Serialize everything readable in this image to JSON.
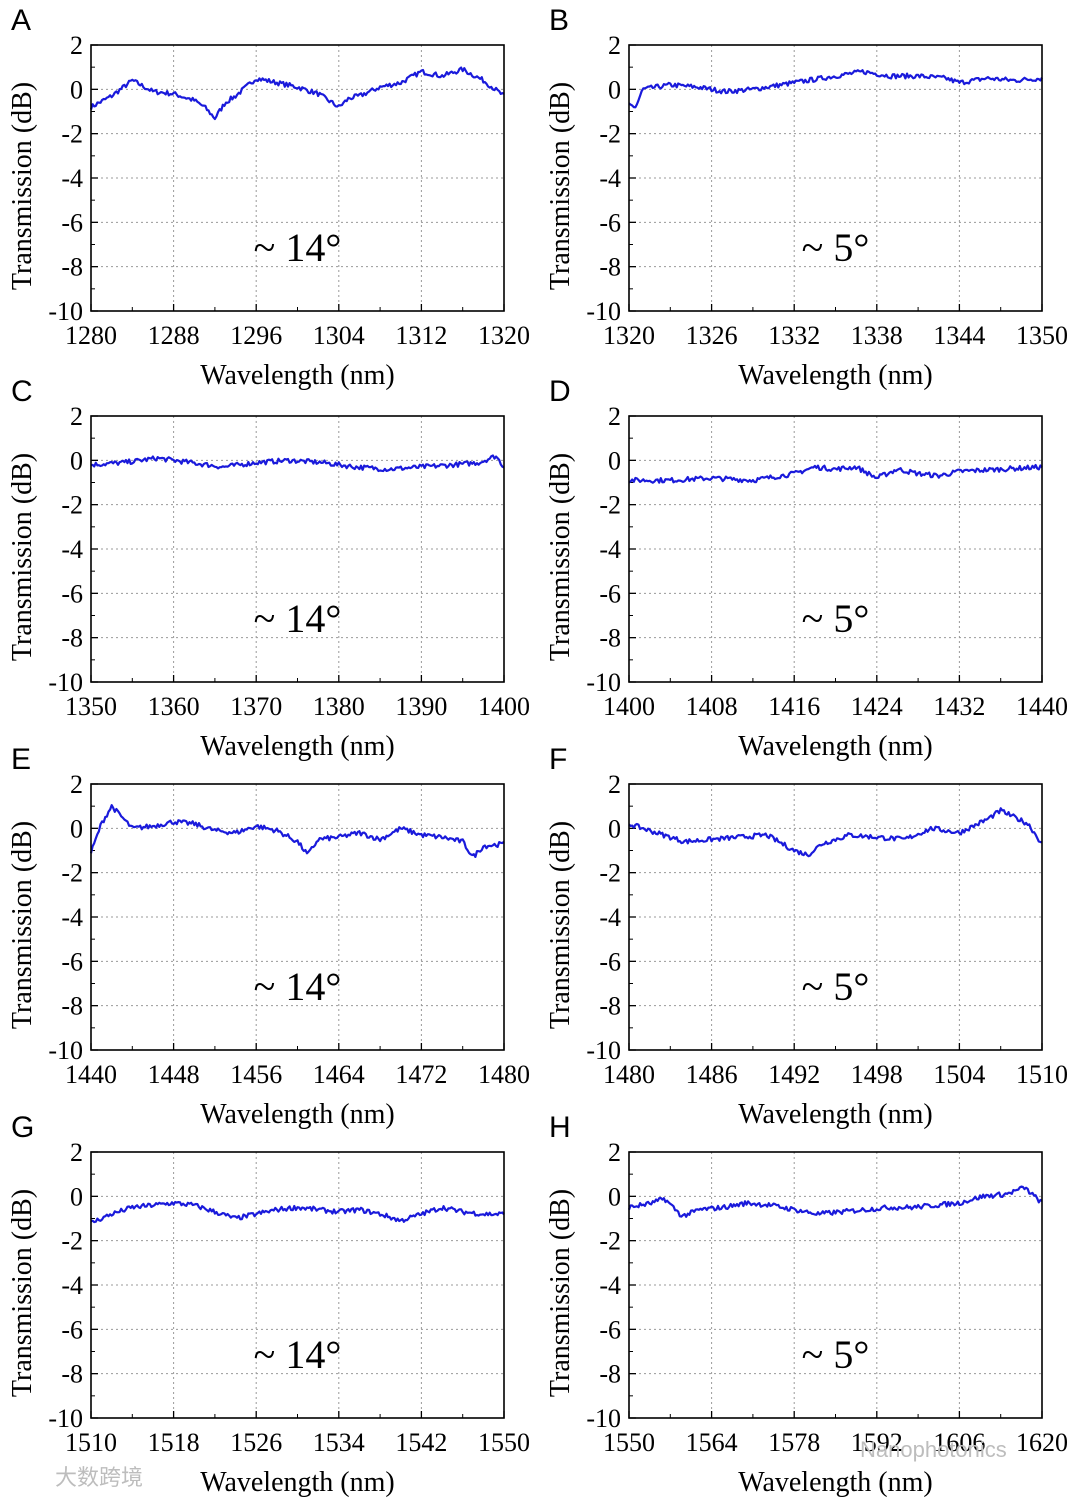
{
  "figure": {
    "watermark_left": "大数跨境",
    "watermark_right": "Nanophotonics"
  },
  "chart_data": [
    {
      "panel": "A",
      "type": "line",
      "annotation": "~ 14°",
      "xlabel": "Wavelength (nm)",
      "ylabel": "Transmission (dB)",
      "xlim": [
        1280,
        1320
      ],
      "ylim": [
        -10,
        2
      ],
      "xticks": [
        1280,
        1288,
        1296,
        1304,
        1312,
        1320
      ],
      "yticks": [
        2,
        0,
        -2,
        -4,
        -6,
        -8,
        -10
      ],
      "series": [
        {
          "name": "transmission",
          "color": "#1a1adb",
          "x": [
            1280,
            1282,
            1284,
            1286,
            1288,
            1290,
            1291,
            1292,
            1293,
            1294,
            1296,
            1298,
            1300,
            1302,
            1304,
            1305,
            1306,
            1308,
            1310,
            1312,
            1314,
            1316,
            1318,
            1320
          ],
          "y": [
            -0.8,
            -0.3,
            0.4,
            -0.1,
            -0.2,
            -0.5,
            -0.8,
            -1.3,
            -0.6,
            -0.3,
            0.5,
            0.3,
            0.1,
            -0.2,
            -0.8,
            -0.4,
            -0.3,
            0.1,
            0.3,
            0.8,
            0.6,
            0.9,
            0.4,
            -0.3
          ]
        }
      ]
    },
    {
      "panel": "B",
      "type": "line",
      "annotation": "~ 5°",
      "xlabel": "Wavelength (nm)",
      "ylabel": "Transmission (dB)",
      "xlim": [
        1320,
        1350
      ],
      "ylim": [
        -10,
        2
      ],
      "xticks": [
        1320,
        1326,
        1332,
        1338,
        1344,
        1350
      ],
      "yticks": [
        2,
        0,
        -2,
        -4,
        -6,
        -8,
        -10
      ],
      "series": [
        {
          "name": "transmission",
          "color": "#1a1adb",
          "x": [
            1320,
            1320.5,
            1321,
            1323,
            1325,
            1327,
            1329,
            1331,
            1333,
            1335,
            1337,
            1339,
            1341,
            1343,
            1344,
            1346,
            1348,
            1350
          ],
          "y": [
            -0.7,
            -0.8,
            0.0,
            0.2,
            0.1,
            -0.1,
            0.0,
            0.2,
            0.4,
            0.6,
            0.8,
            0.6,
            0.6,
            0.5,
            0.3,
            0.5,
            0.4,
            0.5
          ]
        }
      ]
    },
    {
      "panel": "C",
      "type": "line",
      "annotation": "~ 14°",
      "xlabel": "Wavelength (nm)",
      "ylabel": "Transmission (dB)",
      "xlim": [
        1350,
        1400
      ],
      "ylim": [
        -10,
        2
      ],
      "xticks": [
        1350,
        1360,
        1370,
        1380,
        1390,
        1400
      ],
      "yticks": [
        2,
        0,
        -2,
        -4,
        -6,
        -8,
        -10
      ],
      "series": [
        {
          "name": "transmission",
          "color": "#1a1adb",
          "x": [
            1350,
            1354,
            1358,
            1362,
            1366,
            1370,
            1374,
            1378,
            1382,
            1386,
            1390,
            1394,
            1397,
            1399,
            1400
          ],
          "y": [
            -0.2,
            -0.1,
            0.1,
            -0.1,
            -0.3,
            -0.1,
            0.0,
            -0.1,
            -0.3,
            -0.4,
            -0.3,
            -0.2,
            -0.1,
            0.2,
            -0.3
          ]
        }
      ]
    },
    {
      "panel": "D",
      "type": "line",
      "annotation": "~ 5°",
      "xlabel": "Wavelength (nm)",
      "ylabel": "Transmission (dB)",
      "xlim": [
        1400,
        1440
      ],
      "ylim": [
        -10,
        2
      ],
      "xticks": [
        1400,
        1408,
        1416,
        1424,
        1432,
        1440
      ],
      "yticks": [
        2,
        0,
        -2,
        -4,
        -6,
        -8,
        -10
      ],
      "series": [
        {
          "name": "transmission",
          "color": "#1a1adb",
          "x": [
            1400,
            1404,
            1408,
            1412,
            1416,
            1418,
            1420,
            1422,
            1424,
            1426,
            1428,
            1430,
            1432,
            1436,
            1440
          ],
          "y": [
            -0.9,
            -0.9,
            -0.8,
            -0.9,
            -0.6,
            -0.3,
            -0.4,
            -0.3,
            -0.8,
            -0.4,
            -0.6,
            -0.7,
            -0.5,
            -0.4,
            -0.3
          ]
        }
      ]
    },
    {
      "panel": "E",
      "type": "line",
      "annotation": "~ 14°",
      "xlabel": "Wavelength (nm)",
      "ylabel": "Transmission (dB)",
      "xlim": [
        1440,
        1480
      ],
      "ylim": [
        -10,
        2
      ],
      "xticks": [
        1440,
        1448,
        1456,
        1464,
        1472,
        1480
      ],
      "yticks": [
        2,
        0,
        -2,
        -4,
        -6,
        -8,
        -10
      ],
      "series": [
        {
          "name": "transmission",
          "color": "#1a1adb",
          "x": [
            1440,
            1441,
            1442,
            1443,
            1444,
            1446,
            1448,
            1450,
            1452,
            1454,
            1456,
            1458,
            1460,
            1461,
            1462,
            1464,
            1466,
            1468,
            1470,
            1472,
            1474,
            1476,
            1477,
            1478,
            1480
          ],
          "y": [
            -1.1,
            0.2,
            1.0,
            0.5,
            0.0,
            0.1,
            0.3,
            0.2,
            -0.1,
            -0.2,
            0.1,
            -0.1,
            -0.6,
            -1.2,
            -0.5,
            -0.4,
            -0.2,
            -0.5,
            0.0,
            -0.3,
            -0.4,
            -0.6,
            -1.3,
            -0.8,
            -0.7
          ]
        }
      ]
    },
    {
      "panel": "F",
      "type": "line",
      "annotation": "~ 5°",
      "xlabel": "Wavelength (nm)",
      "ylabel": "Transmission (dB)",
      "xlim": [
        1480,
        1510
      ],
      "ylim": [
        -10,
        2
      ],
      "xticks": [
        1480,
        1486,
        1492,
        1498,
        1504,
        1510
      ],
      "yticks": [
        2,
        0,
        -2,
        -4,
        -6,
        -8,
        -10
      ],
      "series": [
        {
          "name": "transmission",
          "color": "#1a1adb",
          "x": [
            1480,
            1482,
            1484,
            1486,
            1488,
            1490,
            1492,
            1493,
            1494,
            1496,
            1498,
            1500,
            1502,
            1504,
            1506,
            1507,
            1508,
            1509,
            1510
          ],
          "y": [
            0.2,
            -0.2,
            -0.6,
            -0.5,
            -0.4,
            -0.3,
            -1.0,
            -1.2,
            -0.7,
            -0.3,
            -0.4,
            -0.5,
            0.0,
            -0.2,
            0.4,
            0.8,
            0.5,
            0.2,
            -0.7
          ]
        }
      ]
    },
    {
      "panel": "G",
      "type": "line",
      "annotation": "~ 14°",
      "xlabel": "Wavelength (nm)",
      "ylabel": "Transmission (dB)",
      "xlim": [
        1510,
        1550
      ],
      "ylim": [
        -10,
        2
      ],
      "xticks": [
        1510,
        1518,
        1526,
        1534,
        1542,
        1550
      ],
      "yticks": [
        2,
        0,
        -2,
        -4,
        -6,
        -8,
        -10
      ],
      "series": [
        {
          "name": "transmission",
          "color": "#1a1adb",
          "x": [
            1510,
            1512,
            1514,
            1516,
            1518,
            1520,
            1522,
            1524,
            1526,
            1528,
            1530,
            1532,
            1534,
            1536,
            1538,
            1540,
            1542,
            1544,
            1546,
            1548,
            1550
          ],
          "y": [
            -1.2,
            -0.8,
            -0.5,
            -0.4,
            -0.3,
            -0.4,
            -0.7,
            -1.0,
            -0.8,
            -0.6,
            -0.5,
            -0.6,
            -0.7,
            -0.6,
            -0.8,
            -1.1,
            -0.8,
            -0.5,
            -0.7,
            -0.8,
            -0.8
          ]
        }
      ]
    },
    {
      "panel": "H",
      "type": "line",
      "annotation": "~ 5°",
      "xlabel": "Wavelength (nm)",
      "ylabel": "Transmission (dB)",
      "xlim": [
        1550,
        1620
      ],
      "ylim": [
        -10,
        2
      ],
      "xticks": [
        1550,
        1564,
        1578,
        1592,
        1606,
        1620
      ],
      "yticks": [
        2,
        0,
        -2,
        -4,
        -6,
        -8,
        -10
      ],
      "series": [
        {
          "name": "transmission",
          "color": "#1a1adb",
          "x": [
            1550,
            1554,
            1556,
            1559,
            1562,
            1566,
            1570,
            1574,
            1578,
            1582,
            1586,
            1590,
            1594,
            1598,
            1602,
            1606,
            1610,
            1614,
            1617,
            1620
          ],
          "y": [
            -0.5,
            -0.3,
            -0.1,
            -0.9,
            -0.6,
            -0.5,
            -0.3,
            -0.4,
            -0.6,
            -0.8,
            -0.7,
            -0.6,
            -0.5,
            -0.5,
            -0.4,
            -0.3,
            0.0,
            0.1,
            0.4,
            -0.3
          ]
        }
      ]
    }
  ]
}
